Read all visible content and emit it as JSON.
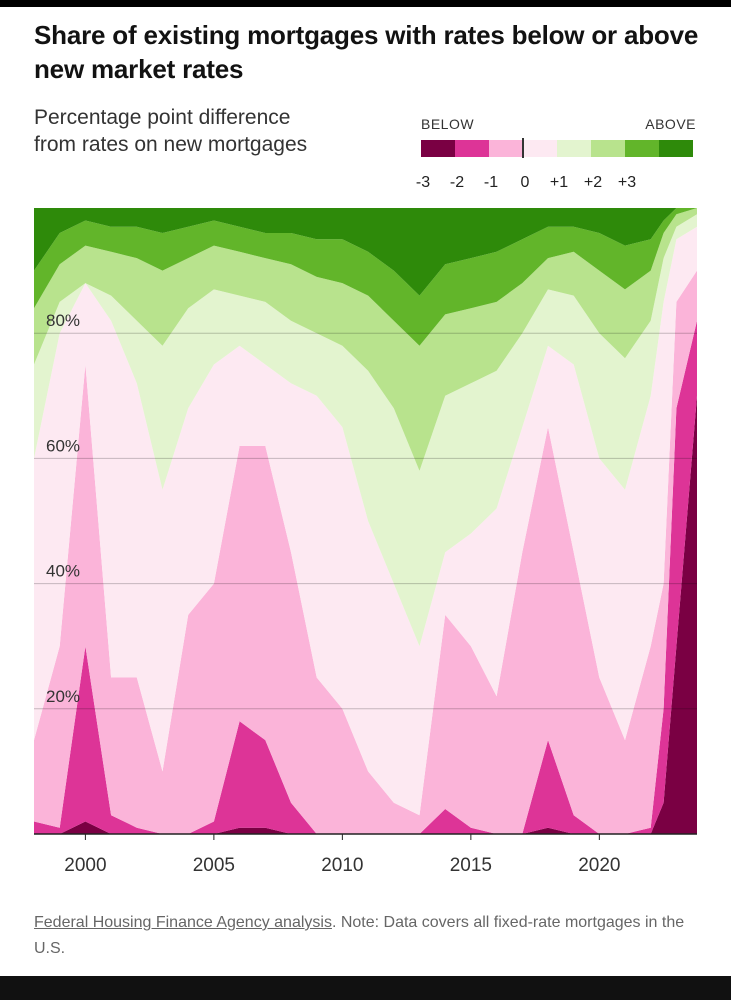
{
  "title": "Share of existing mortgages with rates below or above new market rates",
  "subtitle": "Percentage point difference from rates on new mortgages",
  "legend": {
    "below_label": "BELOW",
    "above_label": "ABOVE",
    "categories": [
      {
        "label": "-3",
        "color": "#7a0043"
      },
      {
        "label": "-2",
        "color": "#dd3497"
      },
      {
        "label": "-1",
        "color": "#fbb4d9"
      },
      {
        "label": "0",
        "color": "#fde9f2"
      },
      {
        "label": "+1",
        "color": "#e3f4cf"
      },
      {
        "label": "+2",
        "color": "#b8e38d"
      },
      {
        "label": "+3",
        "color": "#62b52a"
      },
      {
        "label": "",
        "color": "#2e8a0a"
      }
    ]
  },
  "chart_data": {
    "type": "area",
    "stacked": true,
    "xlim": [
      1998,
      2023.8
    ],
    "ylim": [
      0,
      100
    ],
    "x_ticks": [
      {
        "value": 2000,
        "label": "2000"
      },
      {
        "value": 2005,
        "label": "2005"
      },
      {
        "value": 2010,
        "label": "2010"
      },
      {
        "value": 2015,
        "label": "2015"
      },
      {
        "value": 2020,
        "label": "2020"
      }
    ],
    "y_ticks": [
      {
        "value": 20,
        "label": "20%"
      },
      {
        "value": 40,
        "label": "40%"
      },
      {
        "value": 60,
        "label": "60%"
      },
      {
        "value": 80,
        "label": "80%"
      }
    ],
    "x": [
      1998,
      1999,
      2000,
      2001,
      2002,
      2003,
      2004,
      2005,
      2006,
      2007,
      2008,
      2009,
      2010,
      2011,
      2012,
      2013,
      2014,
      2015,
      2016,
      2017,
      2018,
      2019,
      2020,
      2021,
      2022,
      2022.5,
      2023,
      2023.8
    ],
    "cumulative_boundaries": [
      {
        "name": "-3 and below",
        "values": [
          0,
          0,
          2,
          0,
          0,
          0,
          0,
          0,
          1,
          1,
          0,
          0,
          0,
          0,
          0,
          0,
          0,
          0,
          0,
          0,
          1,
          0,
          0,
          0,
          0,
          5,
          30,
          70
        ]
      },
      {
        "name": "-2 and below",
        "values": [
          2,
          1,
          30,
          3,
          1,
          0,
          0,
          2,
          18,
          15,
          5,
          0,
          0,
          0,
          0,
          0,
          4,
          1,
          0,
          0,
          15,
          3,
          0,
          0,
          1,
          20,
          68,
          82
        ]
      },
      {
        "name": "-1 and below",
        "values": [
          15,
          30,
          75,
          25,
          25,
          10,
          35,
          40,
          62,
          62,
          45,
          25,
          20,
          10,
          5,
          3,
          35,
          30,
          22,
          45,
          65,
          45,
          25,
          15,
          30,
          40,
          85,
          90
        ]
      },
      {
        "name": "0 and below",
        "values": [
          60,
          80,
          88,
          82,
          72,
          55,
          68,
          75,
          78,
          75,
          72,
          70,
          65,
          50,
          40,
          30,
          45,
          48,
          52,
          65,
          78,
          75,
          60,
          55,
          70,
          85,
          95,
          97
        ]
      },
      {
        "name": "+1 and below",
        "values": [
          75,
          85,
          88,
          86,
          82,
          78,
          84,
          87,
          86,
          85,
          82,
          80,
          78,
          74,
          68,
          58,
          70,
          72,
          74,
          80,
          87,
          86,
          80,
          76,
          82,
          92,
          97,
          99
        ]
      },
      {
        "name": "+2 and below",
        "values": [
          84,
          91,
          94,
          93,
          92,
          90,
          92,
          94,
          93,
          92,
          91,
          89,
          88,
          86,
          82,
          78,
          83,
          84,
          85,
          88,
          92,
          93,
          90,
          87,
          90,
          96,
          99,
          100
        ]
      },
      {
        "name": "+3 and below",
        "values": [
          90,
          96,
          98,
          97,
          97,
          96,
          97,
          98,
          97,
          96,
          96,
          95,
          95,
          93,
          90,
          86,
          91,
          92,
          93,
          95,
          97,
          97,
          96,
          94,
          95,
          98,
          100,
          100
        ]
      }
    ]
  },
  "source": {
    "link_text": "Federal Housing Finance Agency analysis",
    "note": ". Note: Data covers all fixed-rate mortgages in the U.S."
  }
}
